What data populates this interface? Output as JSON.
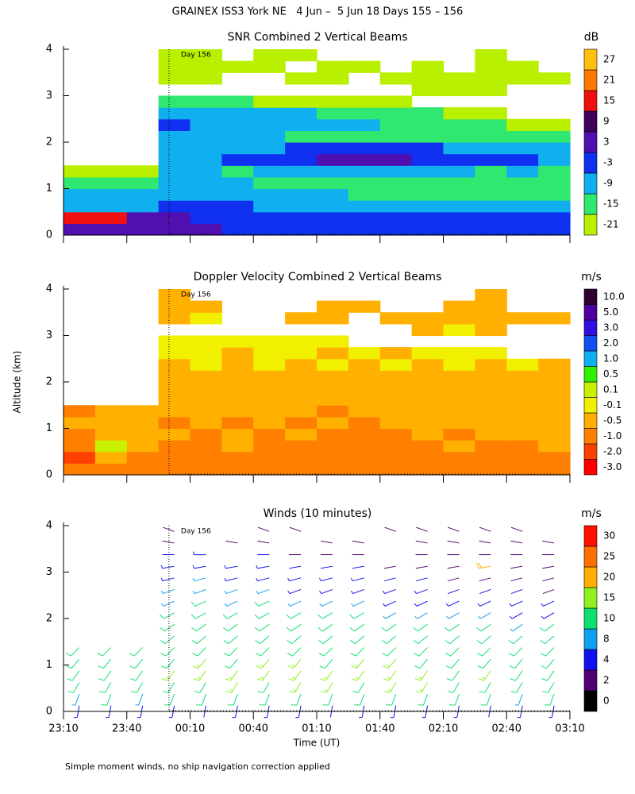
{
  "title": "GRAINEX ISS3 York NE   4 Jun –  5 Jun 18 Days 155 – 156",
  "footnote": "Simple moment winds, no ship navigation correction applied",
  "chart_data": [
    {
      "type": "heatmap",
      "title": "SNR Combined 2 Vertical Beams",
      "colorbar_label": "dB",
      "xlim": [
        23.1667,
        27.1667
      ],
      "xticks": [
        23.1667,
        23.6667,
        24.1667,
        24.6667,
        25.1667,
        25.6667,
        26.1667,
        26.6667,
        27.1667
      ],
      "ylim": [
        0,
        4
      ],
      "yticks": [
        0,
        1,
        2,
        3,
        4
      ],
      "annotation": {
        "x": 24,
        "text": "Day 156"
      },
      "x": [
        23.2917,
        23.5417,
        23.7917,
        24.0417,
        24.2917,
        24.5417,
        24.7917,
        25.0417,
        25.2917,
        25.5417,
        25.7917,
        26.0417,
        26.2917,
        26.5417,
        26.7917,
        27.0417
      ],
      "y": [
        0.125,
        0.375,
        0.625,
        0.875,
        1.125,
        1.375,
        1.625,
        1.875,
        2.125,
        2.375,
        2.625,
        2.875,
        3.125,
        3.375,
        3.625,
        3.875
      ],
      "values": [
        [
          5,
          6,
          5,
          4,
          3,
          2,
          2,
          1,
          1,
          0,
          0,
          0,
          -1,
          -1,
          -2,
          -2
        ],
        [
          16,
          17,
          8,
          4,
          2,
          1,
          0,
          0,
          -1,
          -1,
          -2,
          -2,
          -2,
          -3,
          -3,
          -3
        ],
        [
          -4,
          -5,
          -4,
          -1,
          -2,
          -3,
          -4,
          -4,
          -5,
          -5,
          -5,
          -4,
          -5,
          -6,
          -5,
          -5
        ],
        [
          -8,
          -9,
          -8,
          -4,
          -5,
          -6,
          -7,
          -8,
          -9,
          -10,
          -10,
          -11,
          -11,
          -12,
          -11,
          -12
        ],
        [
          -12,
          -13,
          -12,
          -7,
          -8,
          -9,
          -10,
          -11,
          -12,
          -13,
          -14,
          -14,
          -15,
          -14,
          -13,
          -14
        ],
        [
          -16,
          -17,
          -16,
          -8,
          -9,
          -10,
          -9,
          -8,
          -6,
          -5,
          -6,
          -8,
          -9,
          -10,
          -9,
          -10
        ],
        [
          null,
          null,
          null,
          -5,
          -4,
          -3,
          -2,
          0,
          4,
          5,
          4,
          1,
          -1,
          -2,
          -3,
          -4
        ],
        [
          null,
          null,
          null,
          -6,
          -5,
          -6,
          -4,
          -3,
          -2,
          -2,
          -3,
          -3,
          -4,
          -5,
          -5,
          -6
        ],
        [
          null,
          null,
          null,
          -4,
          -6,
          -7,
          -8,
          -10,
          -12,
          -11,
          -12,
          -13,
          -12,
          -11,
          -12,
          -13
        ],
        [
          null,
          null,
          null,
          -3,
          -4,
          -5,
          -5,
          -6,
          -8,
          -9,
          -10,
          -10,
          -11,
          -12,
          -16,
          -17
        ],
        [
          null,
          null,
          null,
          -8,
          -6,
          -5,
          -6,
          -8,
          -10,
          -12,
          -14,
          -15,
          -16,
          -18,
          null,
          null
        ],
        [
          null,
          null,
          null,
          -14,
          -13,
          -14,
          -16,
          -18,
          -19,
          -20,
          -20,
          null,
          null,
          null,
          null,
          null
        ],
        [
          null,
          null,
          null,
          null,
          null,
          null,
          null,
          null,
          null,
          null,
          null,
          -20,
          -19,
          -20,
          null,
          null
        ],
        [
          null,
          null,
          null,
          -18,
          -19,
          null,
          null,
          -20,
          -19,
          null,
          -20,
          -19,
          -20,
          -19,
          -20,
          -19
        ],
        [
          null,
          null,
          null,
          -16,
          -18,
          -19,
          -20,
          null,
          -20,
          -19,
          null,
          -20,
          null,
          -19,
          -20,
          null
        ],
        [
          null,
          null,
          null,
          -19,
          -20,
          null,
          -20,
          -19,
          null,
          null,
          null,
          null,
          null,
          -20,
          null,
          null
        ]
      ],
      "colorbar": {
        "levels": [
          -21,
          -15,
          -9,
          -3,
          3,
          9,
          15,
          21,
          27
        ],
        "colors": [
          "#b8f000",
          "#30e870",
          "#10b0f0",
          "#1030f0",
          "#5010b0",
          "#400058",
          "#f01010",
          "#ff7800",
          "#ffc010"
        ]
      }
    },
    {
      "type": "heatmap",
      "title": "Doppler Velocity Combined 2 Vertical Beams",
      "colorbar_label": "m/s",
      "ylabel": "Altitude (km)",
      "xlim": [
        23.1667,
        27.1667
      ],
      "xticks": [
        23.1667,
        23.6667,
        24.1667,
        24.6667,
        25.1667,
        25.6667,
        26.1667,
        26.6667,
        27.1667
      ],
      "ylim": [
        0,
        4
      ],
      "yticks": [
        0,
        1,
        2,
        3,
        4
      ],
      "annotation": {
        "x": 24,
        "text": "Day 156"
      },
      "x": [
        23.2917,
        23.5417,
        23.7917,
        24.0417,
        24.2917,
        24.5417,
        24.7917,
        25.0417,
        25.2917,
        25.5417,
        25.7917,
        26.0417,
        26.2917,
        26.5417,
        26.7917,
        27.0417
      ],
      "y": [
        0.125,
        0.375,
        0.625,
        0.875,
        1.125,
        1.375,
        1.625,
        1.875,
        2.125,
        2.375,
        2.625,
        2.875,
        3.125,
        3.375,
        3.625,
        3.875
      ],
      "values": [
        [
          -0.8,
          -0.7,
          -0.9,
          -0.8,
          -0.9,
          -0.8,
          -0.7,
          -0.8,
          -0.9,
          -0.8,
          -0.7,
          -0.8,
          -0.8,
          -0.9,
          -0.8,
          -0.7
        ],
        [
          -1.2,
          -0.3,
          -0.6,
          -0.7,
          -0.8,
          -0.6,
          -0.9,
          -0.7,
          -0.8,
          -0.7,
          -0.6,
          -0.7,
          -0.8,
          -0.6,
          -0.7,
          -0.6
        ],
        [
          -0.6,
          0.2,
          -0.4,
          -0.6,
          -0.7,
          -0.5,
          -0.8,
          -0.6,
          -0.7,
          -0.6,
          -0.7,
          -0.6,
          -0.5,
          -0.6,
          -0.7,
          -0.5
        ],
        [
          -0.7,
          -0.2,
          -0.3,
          -0.5,
          -0.6,
          -0.4,
          -0.7,
          -0.5,
          -0.6,
          -0.7,
          -0.6,
          -0.5,
          -0.6,
          -0.4,
          -0.3,
          -0.4
        ],
        [
          -0.5,
          -0.3,
          -0.2,
          -0.6,
          -0.5,
          -0.6,
          -0.4,
          -0.6,
          -0.5,
          -0.6,
          -0.4,
          -0.3,
          -0.5,
          -0.4,
          -0.2,
          -0.3
        ],
        [
          -0.6,
          -0.4,
          -0.3,
          -0.5,
          -0.4,
          -0.3,
          -0.5,
          -0.4,
          -0.6,
          -0.3,
          -0.4,
          -0.3,
          -0.2,
          -0.3,
          -0.4,
          -0.2
        ],
        [
          null,
          null,
          null,
          -0.4,
          -0.3,
          -0.2,
          -0.4,
          -0.3,
          -0.5,
          -0.2,
          -0.3,
          -0.2,
          -0.3,
          -0.2,
          -0.3,
          -0.2
        ],
        [
          null,
          null,
          null,
          -0.3,
          -0.2,
          -0.3,
          -0.2,
          -0.4,
          -0.2,
          -0.3,
          -0.2,
          -0.3,
          -0.2,
          -0.2,
          -0.3,
          -0.2
        ],
        [
          null,
          null,
          null,
          -0.2,
          -0.3,
          -0.2,
          -0.3,
          -0.2,
          -0.3,
          -0.2,
          -0.2,
          -0.2,
          -0.2,
          -0.3,
          -0.2,
          -0.2
        ],
        [
          null,
          null,
          null,
          -0.2,
          -0.1,
          -0.2,
          0.0,
          -0.2,
          -0.1,
          -0.2,
          -0.1,
          -0.2,
          -0.1,
          -0.2,
          -0.1,
          -0.2
        ],
        [
          null,
          null,
          null,
          -0.1,
          0.0,
          -0.2,
          -0.1,
          -0.1,
          -0.2,
          -0.1,
          -0.2,
          -0.1,
          -0.1,
          0.0,
          null,
          null
        ],
        [
          null,
          null,
          null,
          0.0,
          -0.1,
          0.0,
          -0.1,
          -0.1,
          0.0,
          null,
          null,
          null,
          null,
          null,
          null,
          null
        ],
        [
          null,
          null,
          null,
          null,
          null,
          null,
          null,
          null,
          null,
          null,
          null,
          -0.2,
          -0.1,
          -0.2,
          null,
          null
        ],
        [
          null,
          null,
          null,
          -0.2,
          -0.1,
          null,
          null,
          -0.2,
          -0.3,
          null,
          -0.2,
          -0.3,
          -0.2,
          -0.3,
          -0.2,
          -0.2
        ],
        [
          null,
          null,
          null,
          -0.3,
          -0.2,
          null,
          null,
          null,
          -0.3,
          -0.2,
          null,
          null,
          -0.2,
          -0.3,
          null,
          null
        ],
        [
          null,
          null,
          null,
          -0.2,
          null,
          null,
          null,
          null,
          null,
          null,
          null,
          null,
          null,
          -0.3,
          null,
          null
        ]
      ],
      "colorbar": {
        "levels": [
          {
            "value": -3,
            "label": "-3.0"
          },
          {
            "value": -2,
            "label": "-2.0"
          },
          {
            "value": -1,
            "label": "-1.0"
          },
          -0.5,
          -0.1,
          0.1,
          0.5,
          {
            "value": 1,
            "label": "1.0"
          },
          {
            "value": 2,
            "label": "2.0"
          },
          {
            "value": 3,
            "label": "3.0"
          },
          {
            "value": 5,
            "label": "5.0"
          },
          {
            "value": 10,
            "label": "10.0"
          }
        ],
        "colors": [
          "#ff0000",
          "#ff4000",
          "#ff8000",
          "#ffb000",
          "#f0f000",
          "#c8f000",
          "#30f000",
          "#10b0f0",
          "#1050f0",
          "#3010e0",
          "#5000a0",
          "#300030"
        ]
      }
    },
    {
      "type": "barbs",
      "title": "Winds (10 minutes)",
      "colorbar_label": "m/s",
      "xlabel": "Time (UT)",
      "xlim": [
        23.1667,
        27.1667
      ],
      "xticks": [
        {
          "value": 23.1667,
          "label": "23:10"
        },
        {
          "value": 23.6667,
          "label": "23:40"
        },
        {
          "value": 24.1667,
          "label": "00:10"
        },
        {
          "value": 24.6667,
          "label": "00:40"
        },
        {
          "value": 25.1667,
          "label": "01:10"
        },
        {
          "value": 25.6667,
          "label": "01:40"
        },
        {
          "value": 26.1667,
          "label": "02:10"
        },
        {
          "value": 26.6667,
          "label": "02:40"
        },
        {
          "value": 27.1667,
          "label": "03:10"
        }
      ],
      "ylim": [
        0,
        4
      ],
      "yticks": [
        0,
        1,
        2,
        3,
        4
      ],
      "annotation": {
        "x": 24,
        "text": "Day 156"
      },
      "x": [
        23.2917,
        23.5417,
        23.7917,
        24.0417,
        24.2917,
        24.5417,
        24.7917,
        25.0417,
        25.2917,
        25.5417,
        25.7917,
        26.0417,
        26.2917,
        26.5417,
        26.7917,
        27.0417
      ],
      "y": [
        0.125,
        0.375,
        0.625,
        0.875,
        1.125,
        1.375,
        1.625,
        1.875,
        2.125,
        2.375,
        2.625,
        2.875,
        3.125,
        3.375,
        3.625,
        3.875
      ],
      "direction": [
        190,
        200,
        210,
        215,
        220,
        225,
        230,
        235,
        240,
        245,
        250,
        255,
        260,
        270,
        280,
        290
      ],
      "speed": [
        [
          5,
          5,
          6,
          5,
          4,
          5,
          6,
          5,
          4,
          5,
          6,
          5,
          5,
          4,
          5,
          6
        ],
        [
          9,
          10,
          9,
          11,
          10,
          12,
          11,
          10,
          12,
          11,
          10,
          12,
          11,
          10,
          9,
          10
        ],
        [
          12,
          13,
          12,
          14,
          13,
          15,
          14,
          16,
          15,
          14,
          16,
          15,
          14,
          13,
          12,
          13
        ],
        [
          13,
          14,
          13,
          15,
          16,
          15,
          17,
          16,
          15,
          16,
          17,
          15,
          14,
          15,
          13,
          14
        ],
        [
          12,
          13,
          12,
          14,
          15,
          14,
          16,
          15,
          14,
          16,
          15,
          14,
          13,
          14,
          12,
          13
        ],
        [
          11,
          12,
          11,
          13,
          14,
          13,
          14,
          14,
          13,
          14,
          13,
          13,
          12,
          12,
          11,
          12
        ],
        [
          null,
          null,
          null,
          12,
          13,
          12,
          13,
          12,
          12,
          13,
          12,
          12,
          11,
          11,
          10,
          11
        ],
        [
          null,
          null,
          null,
          11,
          12,
          11,
          12,
          11,
          11,
          12,
          11,
          11,
          10,
          10,
          9,
          10
        ],
        [
          null,
          null,
          null,
          10,
          11,
          10,
          11,
          10,
          10,
          10,
          9,
          9,
          8,
          8,
          7,
          7
        ],
        [
          null,
          null,
          null,
          9,
          10,
          9,
          10,
          9,
          8,
          8,
          7,
          7,
          6,
          6,
          5,
          5
        ],
        [
          null,
          null,
          null,
          8,
          9,
          8,
          8,
          7,
          7,
          6,
          5,
          5,
          4,
          4,
          4,
          3
        ],
        [
          null,
          null,
          null,
          7,
          8,
          7,
          6,
          6,
          5,
          5,
          4,
          4,
          3,
          3,
          3,
          3
        ],
        [
          null,
          null,
          null,
          6,
          6,
          5,
          5,
          4,
          4,
          4,
          3,
          3,
          3,
          22,
          3,
          3
        ],
        [
          null,
          null,
          null,
          4,
          5,
          null,
          4,
          3,
          3,
          3,
          null,
          3,
          3,
          3,
          2,
          3
        ],
        [
          null,
          null,
          null,
          3,
          null,
          3,
          3,
          null,
          3,
          2,
          null,
          3,
          2,
          3,
          3,
          2
        ],
        [
          null,
          null,
          null,
          3,
          null,
          null,
          3,
          2,
          null,
          null,
          2,
          3,
          3,
          2,
          3,
          null
        ]
      ],
      "colorbar": {
        "levels": [
          0,
          2,
          4,
          8,
          10,
          15,
          20,
          25,
          30
        ],
        "colors": [
          "#000000",
          "#500070",
          "#1010f0",
          "#10a0f0",
          "#10e070",
          "#90f020",
          "#ffb000",
          "#ff7000",
          "#ff1000"
        ]
      }
    }
  ]
}
